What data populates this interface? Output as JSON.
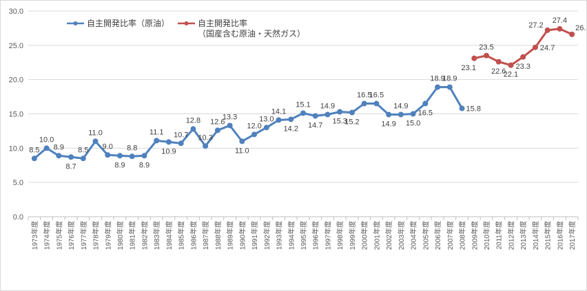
{
  "chart_data": {
    "type": "line",
    "title": "",
    "xlabel": "",
    "ylabel": "",
    "ylim": [
      0,
      30
    ],
    "yticks": [
      "0.0",
      "5.0",
      "10.0",
      "15.0",
      "20.0",
      "25.0",
      "30.0"
    ],
    "grid": true,
    "legend_position": "top-left",
    "categories": [
      "1973年度",
      "1974年度",
      "1975年度",
      "1976年度",
      "1977年度",
      "1978年度",
      "1979年度",
      "1980年度",
      "1981年度",
      "1982年度",
      "1983年度",
      "1984年度",
      "1985年度",
      "1986年度",
      "1987年度",
      "1988年度",
      "1989年度",
      "1990年度",
      "1991年度",
      "1992年度",
      "1993年度",
      "1994年度",
      "1995年度",
      "1996年度",
      "1997年度",
      "1998年度",
      "1999年度",
      "2000年度",
      "2001年度",
      "2002年度",
      "2003年度",
      "2004年度",
      "2005年度",
      "2006年度",
      "2007年度",
      "2008年度",
      "2009年度",
      "2010年度",
      "2011年度",
      "2012年度",
      "2013年度",
      "2014年度",
      "2015年度",
      "2016年度",
      "2017年度"
    ],
    "series": [
      {
        "name": "自主開発比率（原油）",
        "color": "#4f81bd",
        "values": [
          8.5,
          10.0,
          8.9,
          8.7,
          8.5,
          11.0,
          9.0,
          8.9,
          8.8,
          8.9,
          11.1,
          10.9,
          10.7,
          12.8,
          10.3,
          12.6,
          13.3,
          11.0,
          12.0,
          13.0,
          14.1,
          14.2,
          15.1,
          14.7,
          14.9,
          15.3,
          15.2,
          16.5,
          16.5,
          14.9,
          14.9,
          15.0,
          16.5,
          18.9,
          18.9,
          15.8,
          null,
          null,
          null,
          null,
          null,
          null,
          null,
          null,
          null
        ]
      },
      {
        "name": "自主開発比率（国産含む原油・天然ガス）",
        "legend_lines": [
          "自主開発比率",
          "（国産含む原油・天然ガス）"
        ],
        "color": "#c0504d",
        "values": [
          null,
          null,
          null,
          null,
          null,
          null,
          null,
          null,
          null,
          null,
          null,
          null,
          null,
          null,
          null,
          null,
          null,
          null,
          null,
          null,
          null,
          null,
          null,
          null,
          null,
          null,
          null,
          null,
          null,
          null,
          null,
          null,
          null,
          null,
          null,
          null,
          23.1,
          23.5,
          22.6,
          22.1,
          23.3,
          24.7,
          27.2,
          27.4,
          26.6
        ]
      }
    ]
  }
}
